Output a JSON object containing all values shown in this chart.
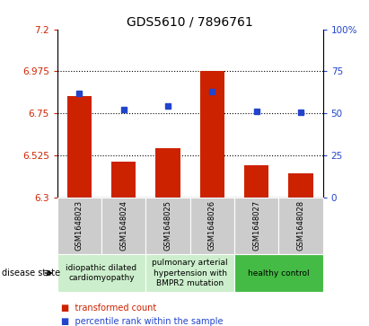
{
  "title": "GDS5610 / 7896761",
  "samples": [
    "GSM1648023",
    "GSM1648024",
    "GSM1648025",
    "GSM1648026",
    "GSM1648027",
    "GSM1648028"
  ],
  "bar_values": [
    6.84,
    6.49,
    6.565,
    6.975,
    6.47,
    6.43
  ],
  "bar_bottom": 6.3,
  "blue_values": [
    6.855,
    6.77,
    6.79,
    6.865,
    6.762,
    6.757
  ],
  "ylim": [
    6.3,
    7.2
  ],
  "ylim_right": [
    0,
    100
  ],
  "yticks_left": [
    6.3,
    6.525,
    6.75,
    6.975,
    7.2
  ],
  "yticks_right": [
    0,
    25,
    50,
    75,
    100
  ],
  "ytick_labels_left": [
    "6.3",
    "6.525",
    "6.75",
    "6.975",
    "7.2"
  ],
  "ytick_labels_right": [
    "0",
    "25",
    "50",
    "75",
    "100%"
  ],
  "hlines": [
    6.525,
    6.75,
    6.975
  ],
  "bar_color": "#cc2200",
  "blue_color": "#2244cc",
  "group_labels": [
    "idiopathic dilated\ncardiomyopathy",
    "pulmonary arterial\nhypertension with\nBMPR2 mutation",
    "healthy control"
  ],
  "group_ranges": [
    [
      0,
      1
    ],
    [
      2,
      3
    ],
    [
      4,
      5
    ]
  ],
  "group_bg_colors": [
    "#cceecc",
    "#cceecc",
    "#44bb44"
  ],
  "sample_box_color": "#cccccc",
  "disease_state_label": "disease state",
  "legend_red_label": "transformed count",
  "legend_blue_label": "percentile rank within the sample",
  "title_fontsize": 10,
  "tick_fontsize": 7.5,
  "sample_fontsize": 6,
  "disease_fontsize": 6.5,
  "legend_fontsize": 7
}
